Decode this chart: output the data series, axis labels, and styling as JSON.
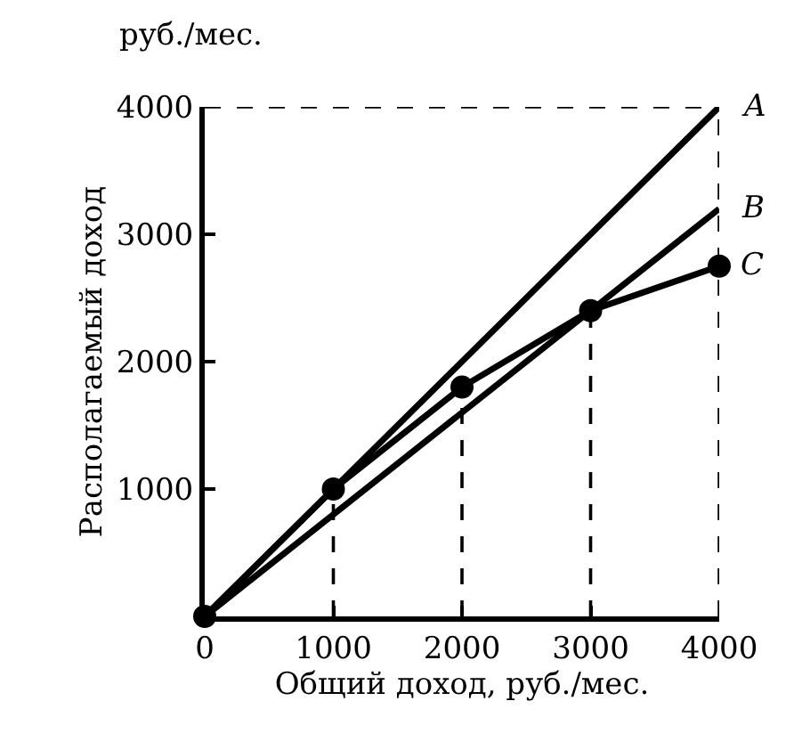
{
  "chart_data": {
    "type": "line",
    "xlabel": "Общий доход, руб./мес.",
    "ylabel": "Располагаемый доход",
    "annotations": [
      "руб./мес."
    ],
    "xlim": [
      0,
      4000
    ],
    "ylim": [
      0,
      4000
    ],
    "xticks": [
      0,
      1000,
      2000,
      3000,
      4000
    ],
    "yticks": [
      1000,
      2000,
      3000,
      4000
    ],
    "legend": false,
    "series": [
      {
        "name": "A",
        "color": "#000000",
        "x": [
          0,
          4000
        ],
        "values": [
          0,
          4000
        ]
      },
      {
        "name": "B",
        "color": "#000000",
        "x": [
          0,
          4000
        ],
        "values": [
          0,
          3200
        ]
      },
      {
        "name": "C",
        "color": "#000000",
        "marker": "circle",
        "x": [
          0,
          1000,
          2000,
          3000,
          4000
        ],
        "values": [
          0,
          1000,
          1800,
          2400,
          2750
        ]
      }
    ],
    "ref_lines": [
      {
        "axis": "y",
        "value": 4000,
        "line_style": "dashed",
        "color": "#000000"
      },
      {
        "axis": "x",
        "value": 1000,
        "line_style": "dashed",
        "color": "#000000"
      },
      {
        "axis": "x",
        "value": 2000,
        "line_style": "dashed",
        "color": "#000000"
      },
      {
        "axis": "x",
        "value": 3000,
        "line_style": "dashed",
        "color": "#000000"
      },
      {
        "axis": "x",
        "value": 4000,
        "line_style": "dashed",
        "color": "#000000"
      }
    ]
  }
}
